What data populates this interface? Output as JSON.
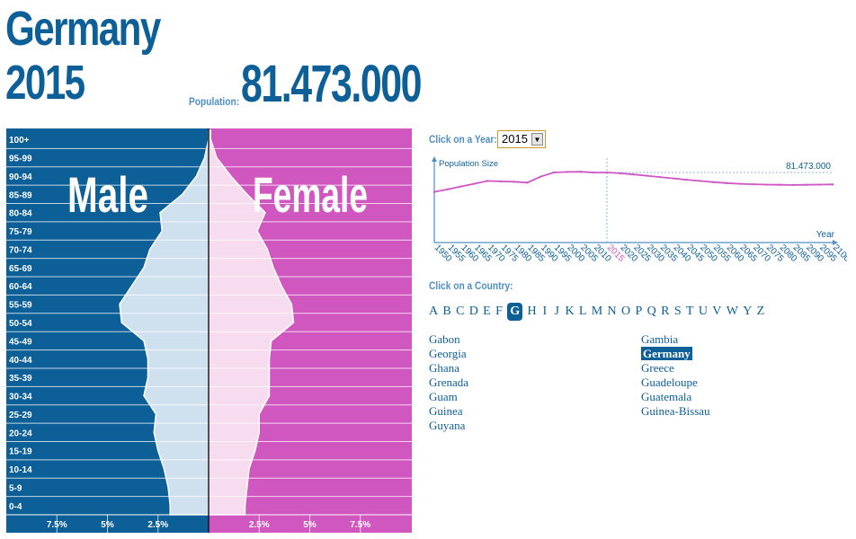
{
  "header": {
    "country": "Germany",
    "year": "2015",
    "population_label": "Population:",
    "population_value": "81.473.000"
  },
  "colors": {
    "male": "#0d5f97",
    "female": "#d157c0",
    "male_inner": "#cfe0ee",
    "female_inner": "#f7dcef",
    "accent": "#0d5f97",
    "line": "#cf56c5"
  },
  "chart_data": [
    {
      "type": "bar",
      "subtype": "population-pyramid",
      "series": [
        {
          "name": "Male",
          "values": [
            1.9,
            2.0,
            2.2,
            2.5,
            2.7,
            2.6,
            3.2,
            3.0,
            3.0,
            3.2,
            4.3,
            4.4,
            3.8,
            3.2,
            2.9,
            2.3,
            2.4,
            1.3,
            0.6,
            0.2,
            0.0
          ]
        },
        {
          "name": "Female",
          "values": [
            1.8,
            1.9,
            2.0,
            2.3,
            2.5,
            2.5,
            3.0,
            3.0,
            3.0,
            3.1,
            4.2,
            4.1,
            3.6,
            3.2,
            2.9,
            2.4,
            2.8,
            1.9,
            1.1,
            0.4,
            0.1
          ]
        }
      ],
      "categories": [
        "0-4",
        "5-9",
        "10-14",
        "15-19",
        "20-24",
        "25-29",
        "30-34",
        "35-39",
        "40-44",
        "45-49",
        "50-54",
        "55-59",
        "60-64",
        "65-69",
        "70-74",
        "75-79",
        "80-84",
        "85-89",
        "90-94",
        "95-99",
        "100+"
      ],
      "x_ticks": [
        "7.5%",
        "5%",
        "2.5%",
        "2.5%",
        "5%",
        "7.5%"
      ],
      "xlim": [
        -10,
        10
      ]
    },
    {
      "type": "line",
      "ylabel": "Population Size",
      "xlabel": "Year",
      "x": [
        1950,
        1955,
        1960,
        1965,
        1970,
        1975,
        1980,
        1985,
        1990,
        1995,
        2000,
        2005,
        2010,
        2015,
        2020,
        2025,
        2030,
        2035,
        2040,
        2045,
        2050,
        2055,
        2060,
        2065,
        2070,
        2075,
        2080,
        2085,
        2090,
        2095,
        2100
      ],
      "values": [
        70.0,
        71.5,
        73.2,
        74.8,
        76.5,
        76.2,
        76.0,
        75.5,
        79.0,
        81.5,
        81.8,
        81.9,
        81.5,
        81.47,
        81.0,
        80.3,
        79.6,
        78.8,
        78.0,
        77.2,
        76.5,
        75.8,
        75.2,
        74.8,
        74.5,
        74.3,
        74.2,
        74.1,
        74.2,
        74.3,
        74.4
      ],
      "highlight_year": "2015",
      "value_label": "81.473.000",
      "ylim": [
        40,
        90
      ]
    }
  ],
  "controls": {
    "year_label": "Click on a Year:",
    "year_value": "2015",
    "country_label": "Click on a Country:",
    "letters": [
      "A",
      "B",
      "C",
      "D",
      "E",
      "F",
      "G",
      "H",
      "I",
      "J",
      "K",
      "L",
      "M",
      "N",
      "O",
      "P",
      "Q",
      "R",
      "S",
      "T",
      "U",
      "V",
      "W",
      "Y",
      "Z"
    ],
    "active_letter": "G",
    "countries_col1": [
      "Gabon",
      "Georgia",
      "Ghana",
      "Grenada",
      "Guam",
      "Guinea",
      "Guyana"
    ],
    "countries_col2": [
      "Gambia",
      "Germany",
      "Greece",
      "Guadeloupe",
      "Guatemala",
      "Guinea-Bissau"
    ],
    "selected_country": "Germany"
  }
}
